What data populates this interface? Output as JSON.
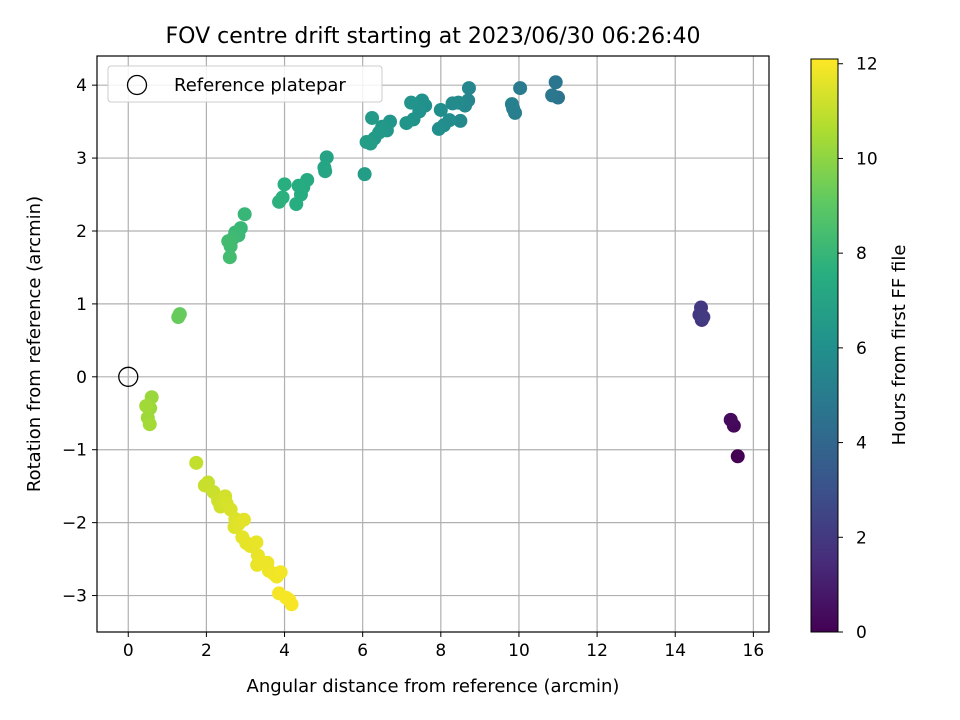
{
  "chart_data": {
    "type": "scatter",
    "title": "FOV centre drift starting at 2023/06/30 06:26:40",
    "xlabel": "Angular distance from reference (arcmin)",
    "ylabel": "Rotation from reference (arcmin)",
    "xlim": [
      -0.8,
      16.4
    ],
    "ylim": [
      -3.5,
      4.4
    ],
    "xticks": [
      0,
      2,
      4,
      6,
      8,
      10,
      12,
      14,
      16
    ],
    "yticks": [
      -3,
      -2,
      -1,
      0,
      1,
      2,
      3,
      4
    ],
    "grid": true,
    "legend": {
      "placement": "top-left",
      "entries": [
        {
          "label": "Reference platepar",
          "marker": "open-circle"
        }
      ]
    },
    "reference_point": {
      "x": 0,
      "y": 0
    },
    "colorbar": {
      "label": "Hours from first FF file",
      "colormap": "viridis",
      "range": [
        0,
        12.1
      ],
      "ticks": [
        0,
        2,
        4,
        6,
        8,
        10,
        12
      ]
    },
    "points": [
      {
        "x": 15.6,
        "y": -1.09,
        "c": 0.0
      },
      {
        "x": 15.5,
        "y": -0.67,
        "c": 0.2
      },
      {
        "x": 15.42,
        "y": -0.59,
        "c": 0.3
      },
      {
        "x": 14.68,
        "y": 0.78,
        "c": 1.8
      },
      {
        "x": 14.62,
        "y": 0.85,
        "c": 1.9
      },
      {
        "x": 14.66,
        "y": 0.95,
        "c": 2.0
      },
      {
        "x": 14.72,
        "y": 0.82,
        "c": 2.1
      },
      {
        "x": 11.0,
        "y": 3.83,
        "c": 4.6
      },
      {
        "x": 10.94,
        "y": 4.04,
        "c": 4.7
      },
      {
        "x": 10.85,
        "y": 3.86,
        "c": 4.8
      },
      {
        "x": 10.03,
        "y": 3.96,
        "c": 5.0
      },
      {
        "x": 9.9,
        "y": 3.62,
        "c": 5.1
      },
      {
        "x": 9.85,
        "y": 3.68,
        "c": 5.15
      },
      {
        "x": 9.82,
        "y": 3.74,
        "c": 5.2
      },
      {
        "x": 8.72,
        "y": 3.96,
        "c": 5.5
      },
      {
        "x": 8.7,
        "y": 3.79,
        "c": 5.55
      },
      {
        "x": 8.62,
        "y": 3.72,
        "c": 5.6
      },
      {
        "x": 8.5,
        "y": 3.51,
        "c": 5.65
      },
      {
        "x": 8.45,
        "y": 3.76,
        "c": 5.7
      },
      {
        "x": 8.3,
        "y": 3.75,
        "c": 5.75
      },
      {
        "x": 8.22,
        "y": 3.52,
        "c": 5.8
      },
      {
        "x": 8.08,
        "y": 3.45,
        "c": 5.85
      },
      {
        "x": 8.0,
        "y": 3.66,
        "c": 5.9
      },
      {
        "x": 7.95,
        "y": 3.4,
        "c": 5.95
      },
      {
        "x": 7.6,
        "y": 3.72,
        "c": 6.0
      },
      {
        "x": 7.52,
        "y": 3.79,
        "c": 6.05
      },
      {
        "x": 7.45,
        "y": 3.64,
        "c": 6.1
      },
      {
        "x": 7.3,
        "y": 3.53,
        "c": 6.15
      },
      {
        "x": 7.24,
        "y": 3.76,
        "c": 6.2
      },
      {
        "x": 7.12,
        "y": 3.48,
        "c": 6.25
      },
      {
        "x": 6.7,
        "y": 3.5,
        "c": 6.3
      },
      {
        "x": 6.62,
        "y": 3.38,
        "c": 6.35
      },
      {
        "x": 6.5,
        "y": 3.43,
        "c": 6.4
      },
      {
        "x": 6.42,
        "y": 3.35,
        "c": 6.45
      },
      {
        "x": 6.3,
        "y": 3.27,
        "c": 6.5
      },
      {
        "x": 6.24,
        "y": 3.55,
        "c": 6.55
      },
      {
        "x": 6.2,
        "y": 3.2,
        "c": 6.6
      },
      {
        "x": 6.1,
        "y": 3.22,
        "c": 6.65
      },
      {
        "x": 6.05,
        "y": 2.78,
        "c": 6.7
      },
      {
        "x": 5.08,
        "y": 3.01,
        "c": 7.0
      },
      {
        "x": 5.04,
        "y": 2.82,
        "c": 7.05
      },
      {
        "x": 5.02,
        "y": 2.87,
        "c": 7.1
      },
      {
        "x": 4.58,
        "y": 2.7,
        "c": 7.3
      },
      {
        "x": 4.48,
        "y": 2.6,
        "c": 7.35
      },
      {
        "x": 4.42,
        "y": 2.5,
        "c": 7.4
      },
      {
        "x": 4.36,
        "y": 2.62,
        "c": 7.45
      },
      {
        "x": 4.3,
        "y": 2.37,
        "c": 7.5
      },
      {
        "x": 4.0,
        "y": 2.64,
        "c": 7.6
      },
      {
        "x": 3.95,
        "y": 2.46,
        "c": 7.65
      },
      {
        "x": 3.86,
        "y": 2.4,
        "c": 7.7
      },
      {
        "x": 2.98,
        "y": 2.23,
        "c": 8.0
      },
      {
        "x": 2.88,
        "y": 2.04,
        "c": 8.05
      },
      {
        "x": 2.82,
        "y": 1.94,
        "c": 8.1
      },
      {
        "x": 2.74,
        "y": 1.98,
        "c": 8.15
      },
      {
        "x": 2.68,
        "y": 1.9,
        "c": 8.2
      },
      {
        "x": 2.62,
        "y": 1.79,
        "c": 8.25
      },
      {
        "x": 2.56,
        "y": 1.86,
        "c": 8.3
      },
      {
        "x": 2.6,
        "y": 1.64,
        "c": 8.35
      },
      {
        "x": 1.32,
        "y": 0.86,
        "c": 9.2
      },
      {
        "x": 1.28,
        "y": 0.82,
        "c": 9.25
      },
      {
        "x": 0.6,
        "y": -0.28,
        "c": 10.2
      },
      {
        "x": 0.56,
        "y": -0.43,
        "c": 10.25
      },
      {
        "x": 0.5,
        "y": -0.56,
        "c": 10.3
      },
      {
        "x": 0.46,
        "y": -0.4,
        "c": 10.35
      },
      {
        "x": 0.55,
        "y": -0.65,
        "c": 10.4
      },
      {
        "x": 1.74,
        "y": -1.18,
        "c": 11.0
      },
      {
        "x": 2.04,
        "y": -1.45,
        "c": 11.05
      },
      {
        "x": 1.96,
        "y": -1.49,
        "c": 11.1
      },
      {
        "x": 2.18,
        "y": -1.58,
        "c": 11.15
      },
      {
        "x": 2.3,
        "y": -1.7,
        "c": 11.2
      },
      {
        "x": 2.36,
        "y": -1.78,
        "c": 11.25
      },
      {
        "x": 2.48,
        "y": -1.64,
        "c": 11.3
      },
      {
        "x": 2.52,
        "y": -1.74,
        "c": 11.35
      },
      {
        "x": 2.62,
        "y": -1.82,
        "c": 11.4
      },
      {
        "x": 2.74,
        "y": -1.95,
        "c": 11.45
      },
      {
        "x": 2.72,
        "y": -2.06,
        "c": 11.5
      },
      {
        "x": 2.82,
        "y": -2.02,
        "c": 11.55
      },
      {
        "x": 2.96,
        "y": -1.96,
        "c": 11.6
      },
      {
        "x": 2.92,
        "y": -2.2,
        "c": 11.62
      },
      {
        "x": 3.02,
        "y": -2.28,
        "c": 11.65
      },
      {
        "x": 3.12,
        "y": -2.32,
        "c": 11.68
      },
      {
        "x": 3.28,
        "y": -2.27,
        "c": 11.7
      },
      {
        "x": 3.32,
        "y": -2.45,
        "c": 11.72
      },
      {
        "x": 3.3,
        "y": -2.58,
        "c": 11.75
      },
      {
        "x": 3.42,
        "y": -2.55,
        "c": 11.78
      },
      {
        "x": 3.56,
        "y": -2.55,
        "c": 11.8
      },
      {
        "x": 3.6,
        "y": -2.66,
        "c": 11.82
      },
      {
        "x": 3.72,
        "y": -2.7,
        "c": 11.85
      },
      {
        "x": 3.8,
        "y": -2.74,
        "c": 11.88
      },
      {
        "x": 3.9,
        "y": -2.68,
        "c": 11.9
      },
      {
        "x": 3.86,
        "y": -2.97,
        "c": 11.93
      },
      {
        "x": 4.04,
        "y": -3.03,
        "c": 11.96
      },
      {
        "x": 4.12,
        "y": -3.06,
        "c": 11.98
      },
      {
        "x": 4.18,
        "y": -3.12,
        "c": 12.0
      }
    ]
  }
}
